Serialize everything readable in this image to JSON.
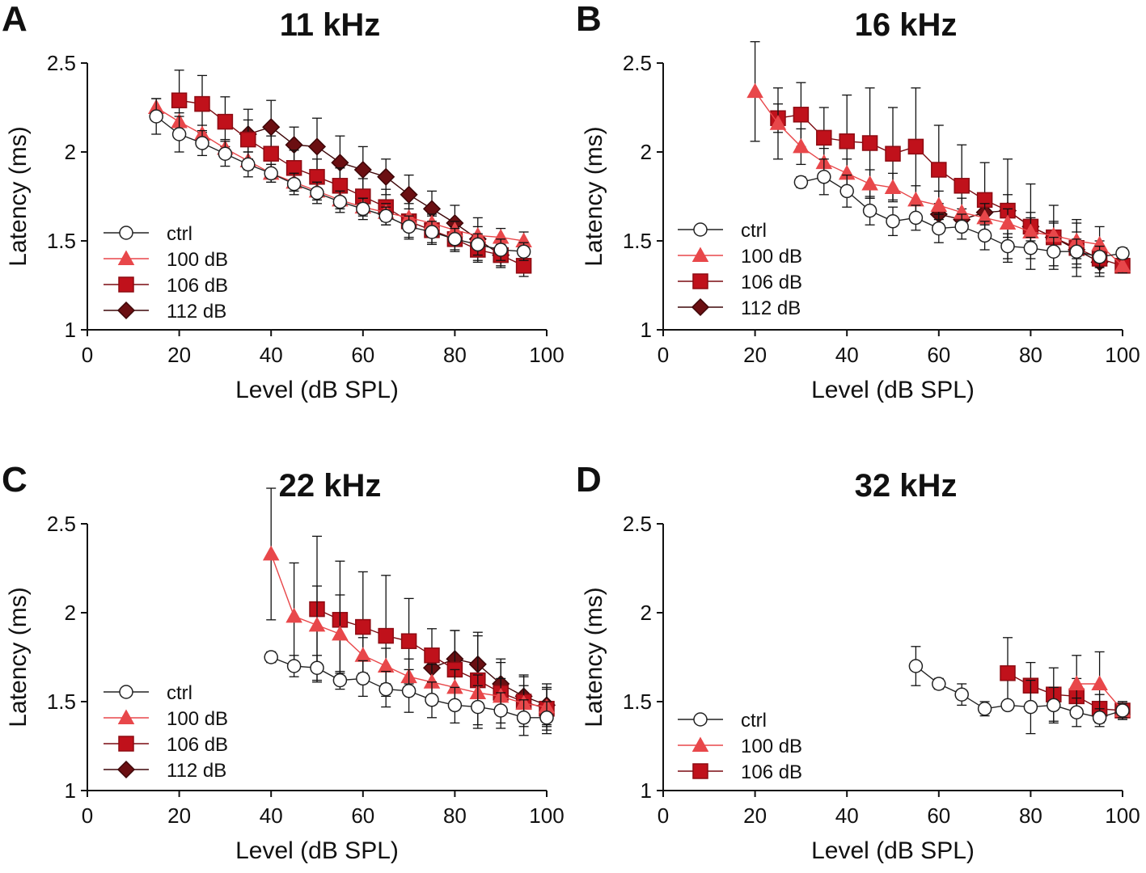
{
  "figure": {
    "panels": [
      "A",
      "B",
      "C",
      "D"
    ]
  },
  "series_styles": {
    "ctrl": {
      "marker": "circle",
      "color": "#ffffff",
      "stroke": "#222222",
      "line": "#222222"
    },
    "100 dB": {
      "marker": "triangle",
      "color": "#e8474a",
      "stroke": "#e8474a",
      "line": "#e8474a"
    },
    "106 dB": {
      "marker": "square",
      "color": "#c0111b",
      "stroke": "#8e0b12",
      "line": "#7a0a10"
    },
    "112 dB": {
      "marker": "diamond",
      "color": "#6b0f12",
      "stroke": "#3d0608",
      "line": "#3d0608"
    }
  },
  "chart_data": [
    {
      "panel": "A",
      "type": "line",
      "title": "11 kHz",
      "xlabel": "Level (dB SPL)",
      "ylabel": "Latency (ms)",
      "xlim": [
        0,
        100
      ],
      "ylim": [
        1,
        2.5
      ],
      "xticks": [
        "0",
        "20",
        "40",
        "60",
        "80",
        "100"
      ],
      "yticks": [
        "1",
        "1.5",
        "2",
        "2.5"
      ],
      "series": [
        {
          "name": "ctrl",
          "x": [
            15,
            20,
            25,
            30,
            35,
            40,
            45,
            50,
            55,
            60,
            65,
            70,
            75,
            80,
            85,
            90,
            95
          ],
          "y": [
            2.2,
            2.1,
            2.05,
            1.99,
            1.93,
            1.88,
            1.82,
            1.77,
            1.72,
            1.68,
            1.64,
            1.58,
            1.55,
            1.51,
            1.48,
            1.45,
            1.44
          ],
          "err": [
            0.1,
            0.1,
            0.07,
            0.07,
            0.07,
            0.05,
            0.06,
            0.06,
            0.06,
            0.06,
            0.05,
            0.06,
            0.06,
            0.06,
            0.06,
            0.06,
            0.05
          ]
        },
        {
          "name": "100 dB",
          "x": [
            15,
            20,
            25,
            30,
            35,
            40,
            45,
            50,
            55,
            60,
            65,
            70,
            75,
            80,
            85,
            90,
            95
          ],
          "y": [
            2.25,
            2.17,
            2.1,
            2.02,
            1.95,
            1.88,
            1.83,
            1.78,
            1.73,
            1.69,
            1.66,
            1.63,
            1.6,
            1.56,
            1.53,
            1.52,
            1.5
          ],
          "err": [
            0.05,
            0.05,
            0.05,
            0.05,
            0.05,
            0.05,
            0.05,
            0.05,
            0.05,
            0.05,
            0.05,
            0.05,
            0.05,
            0.05,
            0.05,
            0.05,
            0.05
          ]
        },
        {
          "name": "106 dB",
          "x": [
            20,
            25,
            30,
            35,
            40,
            45,
            50,
            55,
            60,
            65,
            70,
            75,
            80,
            85,
            90,
            95
          ],
          "y": [
            2.29,
            2.27,
            2.17,
            2.07,
            1.99,
            1.91,
            1.86,
            1.81,
            1.75,
            1.69,
            1.61,
            1.56,
            1.51,
            1.45,
            1.42,
            1.36
          ],
          "err": [
            0.17,
            0.16,
            0.14,
            0.11,
            0.1,
            0.1,
            0.1,
            0.1,
            0.1,
            0.1,
            0.1,
            0.08,
            0.07,
            0.07,
            0.06,
            0.06
          ]
        },
        {
          "name": "112 dB",
          "x": [
            35,
            40,
            45,
            50,
            55,
            60,
            65,
            70,
            75,
            80,
            85,
            90
          ],
          "y": [
            2.1,
            2.14,
            2.04,
            2.03,
            1.94,
            1.9,
            1.86,
            1.76,
            1.68,
            1.6,
            1.51,
            1.42
          ],
          "err": [
            0.14,
            0.15,
            0.1,
            0.16,
            0.15,
            0.13,
            0.1,
            0.11,
            0.1,
            0.1,
            0.12,
            0.07
          ]
        }
      ]
    },
    {
      "panel": "B",
      "type": "line",
      "title": "16 kHz",
      "xlabel": "Level (dB SPL)",
      "ylabel": "Latency (ms)",
      "xlim": [
        0,
        100
      ],
      "ylim": [
        1,
        2.5
      ],
      "xticks": [
        "0",
        "20",
        "40",
        "60",
        "80",
        "100"
      ],
      "yticks": [
        "1",
        "1.5",
        "2",
        "2.5"
      ],
      "series": [
        {
          "name": "ctrl",
          "x": [
            30,
            35,
            40,
            45,
            50,
            55,
            60,
            65,
            70,
            75,
            80,
            85,
            90,
            95,
            100
          ],
          "y": [
            1.83,
            1.86,
            1.78,
            1.67,
            1.61,
            1.63,
            1.57,
            1.58,
            1.53,
            1.47,
            1.46,
            1.44,
            1.44,
            1.41,
            1.43
          ],
          "err": [
            0.03,
            0.1,
            0.09,
            0.08,
            0.08,
            0.07,
            0.08,
            0.07,
            0.08,
            0.07,
            0.06,
            0.08,
            0.07,
            0.06,
            0.03
          ]
        },
        {
          "name": "100 dB",
          "x": [
            20,
            25,
            30,
            35,
            40,
            45,
            50,
            55,
            60,
            65,
            70,
            75,
            80,
            85,
            90,
            95,
            100
          ],
          "y": [
            2.34,
            2.16,
            2.03,
            1.94,
            1.88,
            1.82,
            1.8,
            1.73,
            1.7,
            1.66,
            1.63,
            1.6,
            1.55,
            1.53,
            1.5,
            1.48,
            1.36
          ],
          "err": [
            0.28,
            0.2,
            0.1,
            0.08,
            0.08,
            0.08,
            0.08,
            0.08,
            0.08,
            0.08,
            0.08,
            0.08,
            0.08,
            0.08,
            0.1,
            0.1,
            0.04
          ]
        },
        {
          "name": "106 dB",
          "x": [
            25,
            30,
            35,
            40,
            45,
            50,
            55,
            60,
            65,
            70,
            75,
            80,
            85,
            90,
            95,
            100
          ],
          "y": [
            2.19,
            2.21,
            2.08,
            2.06,
            2.05,
            1.99,
            2.03,
            1.9,
            1.81,
            1.73,
            1.67,
            1.58,
            1.52,
            1.46,
            1.4,
            1.36
          ],
          "err": [
            0.08,
            0.18,
            0.17,
            0.26,
            0.31,
            0.26,
            0.33,
            0.25,
            0.23,
            0.21,
            0.29,
            0.24,
            0.18,
            0.16,
            0.1,
            0.04
          ]
        },
        {
          "name": "112 dB",
          "x": [
            60,
            65,
            70,
            75,
            80,
            85,
            90,
            95
          ],
          "y": [
            1.65,
            1.62,
            1.66,
            1.67,
            1.58,
            1.52,
            1.45,
            1.38
          ],
          "err": [
            0.06,
            0.06,
            0.07,
            0.09,
            0.08,
            0.08,
            0.1,
            0.06
          ]
        }
      ]
    },
    {
      "panel": "C",
      "type": "line",
      "title": "22 kHz",
      "xlabel": "Level (dB SPL)",
      "ylabel": "Latency (ms)",
      "xlim": [
        0,
        100
      ],
      "ylim": [
        1,
        2.5
      ],
      "xticks": [
        "0",
        "20",
        "40",
        "60",
        "80",
        "100"
      ],
      "yticks": [
        "1",
        "1.5",
        "2",
        "2.5"
      ],
      "series": [
        {
          "name": "ctrl",
          "x": [
            40,
            45,
            50,
            55,
            60,
            65,
            70,
            75,
            80,
            85,
            90,
            95,
            100
          ],
          "y": [
            1.75,
            1.7,
            1.69,
            1.62,
            1.63,
            1.57,
            1.56,
            1.51,
            1.48,
            1.47,
            1.45,
            1.41,
            1.41
          ],
          "err": [
            0.03,
            0.06,
            0.07,
            0.05,
            0.1,
            0.1,
            0.12,
            0.1,
            0.1,
            0.12,
            0.1,
            0.1,
            0.09
          ]
        },
        {
          "name": "100 dB",
          "x": [
            40,
            45,
            50,
            55,
            60,
            65,
            70,
            75,
            80,
            85,
            90,
            95,
            100
          ],
          "y": [
            2.33,
            1.98,
            1.93,
            1.88,
            1.76,
            1.7,
            1.64,
            1.61,
            1.58,
            1.55,
            1.53,
            1.49,
            1.47
          ],
          "err": [
            0.37,
            0.3,
            0.22,
            0.22,
            0.1,
            0.1,
            0.1,
            0.1,
            0.1,
            0.1,
            0.1,
            0.1,
            0.1
          ]
        },
        {
          "name": "106 dB",
          "x": [
            50,
            55,
            60,
            65,
            70,
            75,
            80,
            85,
            90,
            95,
            100
          ],
          "y": [
            2.02,
            1.96,
            1.92,
            1.87,
            1.84,
            1.76,
            1.68,
            1.62,
            1.55,
            1.5,
            1.46
          ],
          "err": [
            0.41,
            0.33,
            0.31,
            0.34,
            0.24,
            0.15,
            0.22,
            0.25,
            0.17,
            0.14,
            0.12
          ]
        },
        {
          "name": "112 dB",
          "x": [
            75,
            80,
            85,
            90,
            95,
            100
          ],
          "y": [
            1.69,
            1.74,
            1.71,
            1.6,
            1.53,
            1.48
          ],
          "err": [
            0.08,
            0.16,
            0.18,
            0.14,
            0.12,
            0.12
          ]
        }
      ]
    },
    {
      "panel": "D",
      "type": "line",
      "title": "32 kHz",
      "xlabel": "Level (dB SPL)",
      "ylabel": "Latency (ms)",
      "xlim": [
        0,
        100
      ],
      "ylim": [
        1,
        2.5
      ],
      "xticks": [
        "0",
        "20",
        "40",
        "60",
        "80",
        "100"
      ],
      "yticks": [
        "1",
        "1.5",
        "2",
        "2.5"
      ],
      "series": [
        {
          "name": "ctrl",
          "x": [
            55,
            60,
            65,
            70,
            75,
            80,
            85,
            90,
            95,
            100
          ],
          "y": [
            1.7,
            1.6,
            1.54,
            1.46,
            1.48,
            1.47,
            1.48,
            1.44,
            1.41,
            1.45
          ],
          "err": [
            0.11,
            0.03,
            0.06,
            0.04,
            0.02,
            0.15,
            0.1,
            0.08,
            0.05,
            0.04
          ]
        },
        {
          "name": "100 dB",
          "x": [
            90,
            95,
            100
          ],
          "y": [
            1.6,
            1.6,
            1.45
          ],
          "err": [
            0.16,
            0.18,
            0.05
          ]
        },
        {
          "name": "106 dB",
          "x": [
            75,
            80,
            85,
            90,
            95,
            100
          ],
          "y": [
            1.66,
            1.59,
            1.54,
            1.53,
            1.46,
            1.45
          ],
          "err": [
            0.2,
            0.13,
            0.15,
            0.1,
            0.08,
            0.05
          ]
        }
      ]
    }
  ]
}
